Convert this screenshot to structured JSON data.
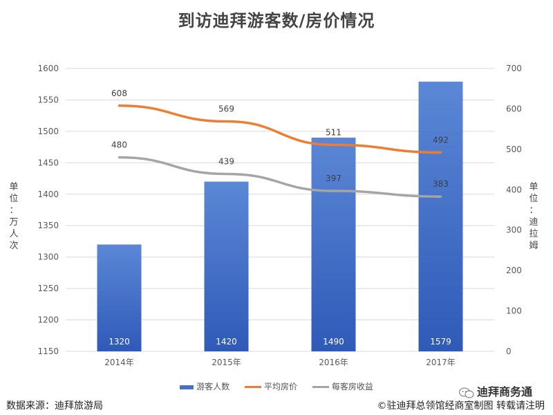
{
  "chart_data": {
    "type": "bar",
    "title": "到访迪拜游客数/房价情况",
    "categories": [
      "2014年",
      "2015年",
      "2016年",
      "2017年"
    ],
    "series": [
      {
        "name": "游客人数",
        "kind": "bar",
        "axis": "left",
        "color": "#4472C4",
        "values": [
          1320,
          1420,
          1490,
          1579
        ]
      },
      {
        "name": "平均房价",
        "kind": "line",
        "axis": "right",
        "color": "#ED7D31",
        "values": [
          608,
          569,
          511,
          492
        ]
      },
      {
        "name": "每客房收益",
        "kind": "line",
        "axis": "right",
        "color": "#A5A5A5",
        "values": [
          480,
          439,
          397,
          383
        ]
      }
    ],
    "ylabel_left": "单位：万人次",
    "ylabel_right": "单位：迪拉姆",
    "ylim_left": [
      1150,
      1600
    ],
    "yticks_left": [
      1150,
      1200,
      1250,
      1300,
      1350,
      1400,
      1450,
      1500,
      1550,
      1600
    ],
    "ylim_right": [
      0,
      700
    ],
    "yticks_right": [
      0,
      100,
      200,
      300,
      400,
      500,
      600,
      700
    ],
    "legend": "bottom",
    "grid": true
  },
  "footer": {
    "source": "数据来源：迪拜旅游局",
    "copyright": "©驻迪拜总领馆经商室制图 转载请注明",
    "wechat": "迪拜商务通"
  }
}
